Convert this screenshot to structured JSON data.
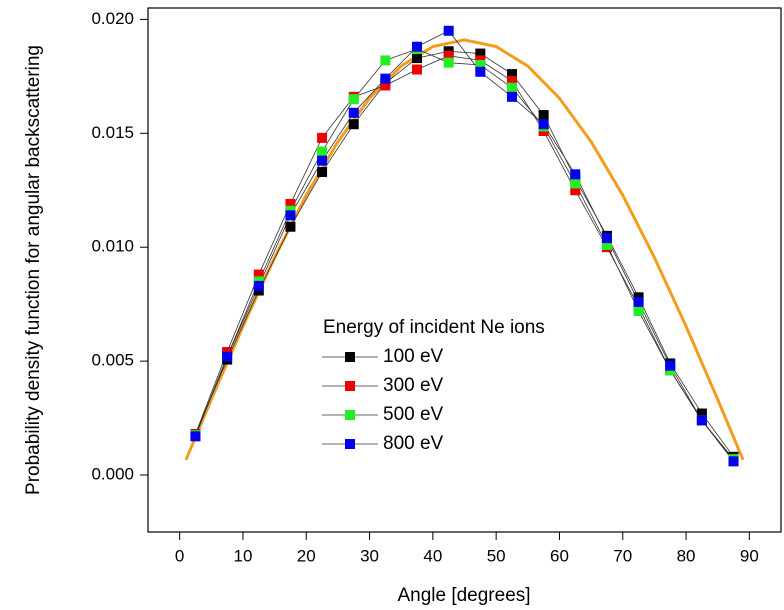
{
  "chart_data": {
    "type": "scatter-line",
    "x_label": "Angle [degrees]",
    "y_label": "Probability density function for angular backscattering",
    "legend_title": "Energy of incident Ne ions",
    "x": [
      2.5,
      7.5,
      12.5,
      17.5,
      22.5,
      27.5,
      32.5,
      37.5,
      42.5,
      47.5,
      52.5,
      57.5,
      62.5,
      67.5,
      72.5,
      77.5,
      82.5,
      87.5
    ],
    "series": [
      {
        "name": "100 eV",
        "color": "#000000",
        "values": [
          0.0018,
          0.00507,
          0.0081,
          0.0109,
          0.0133,
          0.0154,
          0.0172,
          0.0183,
          0.0186,
          0.0185,
          0.0176,
          0.0158,
          0.013,
          0.0105,
          0.0078,
          0.0049,
          0.0027,
          0.0008
        ]
      },
      {
        "name": "300 eV",
        "color": "#ee0000",
        "values": [
          0.0018,
          0.0054,
          0.0088,
          0.0119,
          0.0148,
          0.0166,
          0.0171,
          0.0178,
          0.0184,
          0.0182,
          0.0173,
          0.0151,
          0.0125,
          0.01,
          0.0074,
          0.0046,
          0.0024,
          0.00065
        ]
      },
      {
        "name": "500 eV",
        "color": "#22ee22",
        "values": [
          0.00175,
          0.0052,
          0.0085,
          0.0116,
          0.0142,
          0.0165,
          0.0182,
          0.0187,
          0.0181,
          0.018,
          0.017,
          0.0153,
          0.0128,
          0.0101,
          0.0072,
          0.0046,
          0.0024,
          0.0007
        ]
      },
      {
        "name": "800 eV",
        "color": "#0000ee",
        "values": [
          0.0017,
          0.0052,
          0.0083,
          0.0114,
          0.0138,
          0.0159,
          0.0174,
          0.0188,
          0.0195,
          0.0177,
          0.0166,
          0.0154,
          0.0132,
          0.0104,
          0.0076,
          0.0048,
          0.0024,
          0.0006
        ]
      }
    ],
    "fit": {
      "color": "#f39c1e",
      "x": [
        1,
        5,
        10,
        15,
        20,
        25,
        30,
        35,
        40,
        45,
        50,
        55,
        60,
        65,
        70,
        75,
        80,
        85,
        89
      ],
      "values": [
        0.00067,
        0.00332,
        0.00653,
        0.00955,
        0.01228,
        0.01463,
        0.01654,
        0.01795,
        0.01881,
        0.0191,
        0.01881,
        0.01795,
        0.01654,
        0.01463,
        0.01228,
        0.00955,
        0.00653,
        0.00332,
        0.00067
      ]
    },
    "xlim": [
      -5,
      95
    ],
    "ylim": [
      -0.0025,
      0.0205
    ],
    "xticks": [
      0,
      10,
      20,
      30,
      40,
      50,
      60,
      70,
      80,
      90
    ],
    "yticks": [
      {
        "value": 0,
        "label": "0.000"
      },
      {
        "value": 0.005,
        "label": "0.005"
      },
      {
        "value": 0.01,
        "label": "0.010"
      },
      {
        "value": 0.015,
        "label": "0.015"
      },
      {
        "value": 0.02,
        "label": "0.020"
      }
    ]
  }
}
